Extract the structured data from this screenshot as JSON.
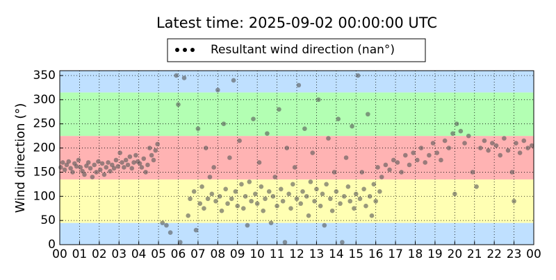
{
  "chart_data": {
    "type": "scatter",
    "title": "Latest time: 2025-09-02 00:00:00 UTC",
    "y_label": "Wind direction (°)",
    "legend": "upper center",
    "grid": true,
    "xlim": [
      0,
      24
    ],
    "xticks": [
      {
        "value": 0,
        "label": "00"
      },
      {
        "value": 1,
        "label": "01"
      },
      {
        "value": 2,
        "label": "02"
      },
      {
        "value": 3,
        "label": "03"
      },
      {
        "value": 4,
        "label": "04"
      },
      {
        "value": 5,
        "label": "05"
      },
      {
        "value": 6,
        "label": "06"
      },
      {
        "value": 7,
        "label": "07"
      },
      {
        "value": 8,
        "label": "08"
      },
      {
        "value": 9,
        "label": "09"
      },
      {
        "value": 10,
        "label": "10"
      },
      {
        "value": 11,
        "label": "11"
      },
      {
        "value": 12,
        "label": "12"
      },
      {
        "value": 13,
        "label": "13"
      },
      {
        "value": 14,
        "label": "14"
      },
      {
        "value": 15,
        "label": "15"
      },
      {
        "value": 16,
        "label": "16"
      },
      {
        "value": 17,
        "label": "17"
      },
      {
        "value": 18,
        "label": "18"
      },
      {
        "value": 19,
        "label": "19"
      },
      {
        "value": 20,
        "label": "20"
      },
      {
        "value": 21,
        "label": "21"
      },
      {
        "value": 22,
        "label": "22"
      },
      {
        "value": 23,
        "label": "23"
      },
      {
        "value": 24,
        "label": "00"
      }
    ],
    "ylim": [
      0,
      360
    ],
    "yticks": [
      0,
      50,
      100,
      150,
      200,
      250,
      300,
      350
    ],
    "bands": [
      {
        "from": 0,
        "to": 45,
        "color": "#bfe0ff"
      },
      {
        "from": 45,
        "to": 135,
        "color": "#ffffb3"
      },
      {
        "from": 135,
        "to": 225,
        "color": "#ffb3b3"
      },
      {
        "from": 225,
        "to": 315,
        "color": "#b3ffb3"
      },
      {
        "from": 315,
        "to": 360,
        "color": "#bfe0ff"
      }
    ],
    "x": [
      0.05,
      0.15,
      0.25,
      0.35,
      0.45,
      0.55,
      0.65,
      0.75,
      0.85,
      0.95,
      1.05,
      1.15,
      1.25,
      1.35,
      1.45,
      1.55,
      1.65,
      1.75,
      1.85,
      1.95,
      2.05,
      2.15,
      2.25,
      2.35,
      2.45,
      2.55,
      2.65,
      2.75,
      2.85,
      2.95,
      3.05,
      3.15,
      3.25,
      3.35,
      3.45,
      3.55,
      3.65,
      3.75,
      3.85,
      3.95,
      4.05,
      4.15,
      4.25,
      4.35,
      4.45,
      4.55,
      4.65,
      4.75,
      4.85,
      4.95,
      5.2,
      5.4,
      5.6,
      5.9,
      6.0,
      6.1,
      6.3,
      6.5,
      6.6,
      6.8,
      6.9,
      7.0,
      7.1,
      7.2,
      7.3,
      7.4,
      7.5,
      7.6,
      7.7,
      7.8,
      7.9,
      8.0,
      8.1,
      8.2,
      8.3,
      8.4,
      8.5,
      8.6,
      8.7,
      8.8,
      8.9,
      9.0,
      9.1,
      9.2,
      9.3,
      9.4,
      9.5,
      9.6,
      9.7,
      9.8,
      9.9,
      10.0,
      10.1,
      10.2,
      10.3,
      10.4,
      10.5,
      10.6,
      10.7,
      10.8,
      10.9,
      11.0,
      11.1,
      11.2,
      11.3,
      11.4,
      11.5,
      11.6,
      11.7,
      11.8,
      11.9,
      12.0,
      12.1,
      12.2,
      12.3,
      12.4,
      12.5,
      12.6,
      12.7,
      12.8,
      12.9,
      13.0,
      13.1,
      13.2,
      13.3,
      13.4,
      13.5,
      13.6,
      13.7,
      13.8,
      13.9,
      14.0,
      14.1,
      14.2,
      14.3,
      14.4,
      14.5,
      14.6,
      14.7,
      14.8,
      14.9,
      15.0,
      15.1,
      15.2,
      15.3,
      15.4,
      15.5,
      15.6,
      15.7,
      15.8,
      15.9,
      16.0,
      16.1,
      16.2,
      16.3,
      16.5,
      16.7,
      16.9,
      17.1,
      17.3,
      17.5,
      17.7,
      17.9,
      18.1,
      18.3,
      18.5,
      18.7,
      18.9,
      19.1,
      19.3,
      19.5,
      19.7,
      19.9,
      20.0,
      20.1,
      20.3,
      20.5,
      20.7,
      20.9,
      21.1,
      21.3,
      21.5,
      21.7,
      21.9,
      22.1,
      22.3,
      22.5,
      22.7,
      22.9,
      23.0,
      23.1,
      23.3,
      23.5,
      23.7,
      23.9
    ],
    "series": [
      {
        "name": "Resultant wind direction (nan°)",
        "color": "#555555",
        "values": [
          160,
          170,
          155,
          165,
          172,
          158,
          150,
          168,
          162,
          175,
          160,
          152,
          145,
          163,
          170,
          158,
          140,
          165,
          150,
          172,
          155,
          168,
          145,
          160,
          170,
          152,
          165,
          158,
          175,
          162,
          190,
          170,
          160,
          175,
          165,
          182,
          158,
          170,
          185,
          172,
          168,
          160,
          178,
          150,
          165,
          200,
          185,
          175,
          195,
          208,
          45,
          40,
          25,
          350,
          290,
          5,
          345,
          60,
          95,
          110,
          30,
          240,
          85,
          120,
          75,
          200,
          95,
          140,
          105,
          160,
          90,
          320,
          100,
          70,
          250,
          115,
          85,
          180,
          95,
          340,
          110,
          80,
          215,
          125,
          75,
          100,
          40,
          130,
          90,
          260,
          105,
          85,
          170,
          120,
          70,
          95,
          230,
          110,
          45,
          100,
          140,
          80,
          280,
          115,
          90,
          5,
          200,
          105,
          75,
          125,
          160,
          95,
          330,
          85,
          110,
          240,
          100,
          60,
          130,
          190,
          90,
          115,
          300,
          80,
          105,
          40,
          125,
          220,
          95,
          70,
          150,
          110,
          260,
          85,
          5,
          100,
          180,
          120,
          90,
          245,
          75,
          105,
          350,
          95,
          150,
          115,
          80,
          270,
          100,
          60,
          125,
          90,
          160,
          110,
          140,
          165,
          155,
          175,
          170,
          150,
          185,
          165,
          190,
          175,
          200,
          170,
          185,
          210,
          190,
          175,
          215,
          200,
          230,
          105,
          250,
          235,
          210,
          225,
          150,
          120,
          200,
          215,
          195,
          210,
          205,
          185,
          220,
          195,
          150,
          90,
          210,
          190,
          215,
          200,
          205
        ]
      }
    ]
  }
}
